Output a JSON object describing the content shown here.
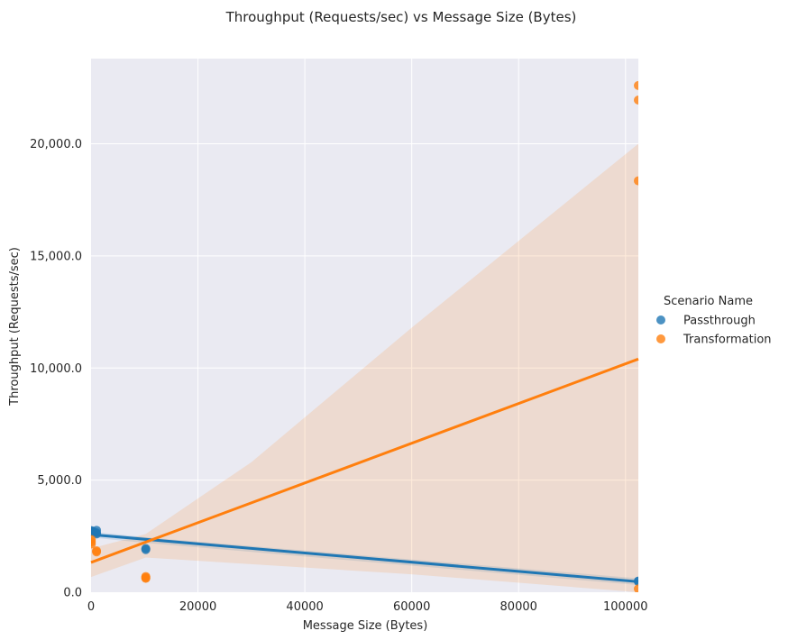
{
  "chart_data": {
    "type": "scatter",
    "title": "Throughput (Requests/sec) vs Message Size (Bytes)",
    "xlabel": "Message Size (Bytes)",
    "ylabel": "Throughput (Requests/sec)",
    "xlim": [
      0,
      102400
    ],
    "ylim": [
      0,
      23800
    ],
    "xticks": [
      0,
      20000,
      40000,
      60000,
      80000,
      100000
    ],
    "xtick_labels": [
      "0",
      "20000",
      "40000",
      "60000",
      "80000",
      "100000"
    ],
    "yticks": [
      0,
      5000,
      10000,
      15000,
      20000
    ],
    "ytick_labels": [
      "0.0",
      "5,000.0",
      "10,000.0",
      "15,000.0",
      "20,000.0"
    ],
    "grid": true,
    "legend": {
      "title": "Scenario Name",
      "placement": "right"
    },
    "series": [
      {
        "name": "Passthrough",
        "color": "#1f77b4",
        "points": [
          [
            50,
            2750
          ],
          [
            100,
            2720
          ],
          [
            500,
            2700
          ],
          [
            1024,
            2760
          ],
          [
            1024,
            2650
          ],
          [
            1024,
            2600
          ],
          [
            10240,
            1950
          ],
          [
            10240,
            1900
          ],
          [
            102400,
            500
          ],
          [
            102400,
            480
          ]
        ],
        "fit": [
          [
            0,
            2570
          ],
          [
            102400,
            470
          ]
        ],
        "ci_upper": [
          [
            0,
            2700
          ],
          [
            10240,
            2450
          ],
          [
            102400,
            620
          ]
        ],
        "ci_lower": [
          [
            0,
            2440
          ],
          [
            10240,
            2200
          ],
          [
            102400,
            320
          ]
        ]
      },
      {
        "name": "Transformation",
        "color": "#ff7f0e",
        "points": [
          [
            50,
            2350
          ],
          [
            50,
            2250
          ],
          [
            50,
            2150
          ],
          [
            1024,
            1850
          ],
          [
            1024,
            1800
          ],
          [
            10240,
            700
          ],
          [
            10240,
            650
          ],
          [
            10240,
            620
          ],
          [
            102400,
            22600
          ],
          [
            102400,
            21950
          ],
          [
            102400,
            18350
          ],
          [
            102400,
            150
          ]
        ],
        "fit": [
          [
            0,
            1330
          ],
          [
            102400,
            10400
          ]
        ],
        "ci_upper": [
          [
            0,
            1950
          ],
          [
            10240,
            2600
          ],
          [
            30000,
            5800
          ],
          [
            60000,
            11800
          ],
          [
            102400,
            20000
          ]
        ],
        "ci_lower": [
          [
            0,
            680
          ],
          [
            10240,
            1550
          ],
          [
            30000,
            1250
          ],
          [
            60000,
            800
          ],
          [
            102400,
            0
          ]
        ]
      }
    ]
  }
}
